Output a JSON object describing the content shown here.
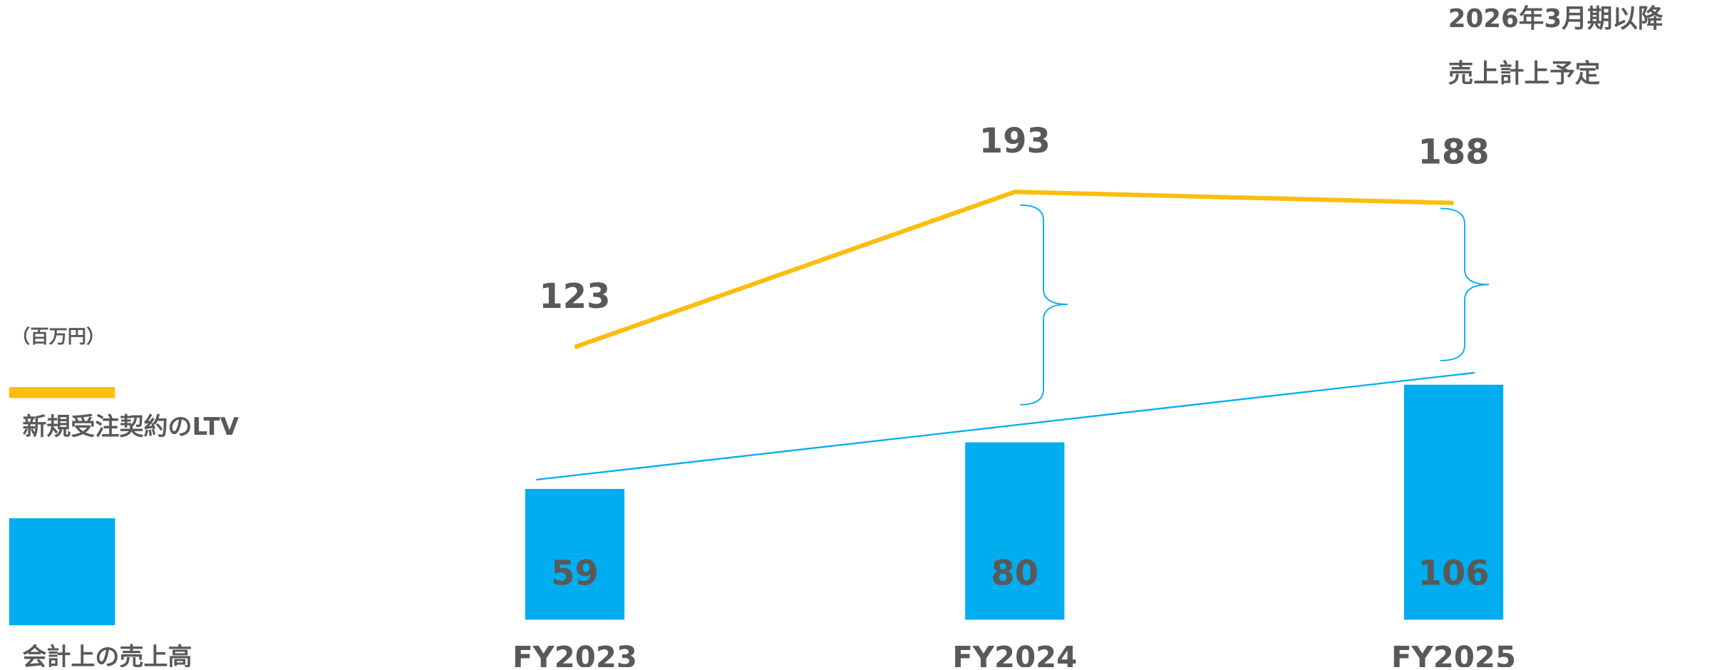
{
  "chart_data": {
    "type": "bar-line",
    "unit": "（百万円）",
    "annotation": [
      "2026年3月期以降",
      "売上計上予定"
    ],
    "categories": [
      "FY2023",
      "FY2024",
      "FY2025"
    ],
    "series": [
      {
        "name": "新規受注契約のLTV",
        "type": "line",
        "color": "#fbbd0e",
        "values": [
          123,
          193,
          188
        ]
      },
      {
        "name": "会計上の売上高",
        "type": "bar",
        "color": "#00adef",
        "values": [
          59,
          80,
          106
        ]
      }
    ]
  }
}
